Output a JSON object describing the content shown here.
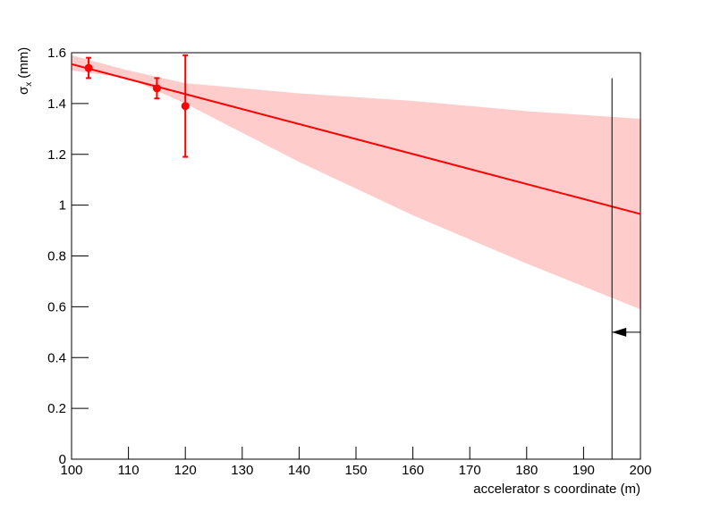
{
  "chart_data": {
    "type": "scatter",
    "x_label": "accelerator s coordinate (m)",
    "y_label": {
      "symbol": "σ",
      "subscript": "x",
      "unit": "(mm)"
    },
    "xlim": [
      100,
      200
    ],
    "xticks": [
      100,
      110,
      120,
      130,
      140,
      150,
      160,
      170,
      180,
      190,
      200
    ],
    "ylim": [
      0,
      1.6
    ],
    "yticks": [
      0,
      0.2,
      0.4,
      0.6,
      0.8,
      1,
      1.2,
      1.4,
      1.6
    ],
    "grid": false,
    "series": [
      {
        "color": "#ff0000",
        "x": [
          103,
          115,
          120
        ],
        "values": [
          1.54,
          1.46,
          1.39
        ],
        "errors": [
          0.04,
          0.04,
          0.2
        ]
      }
    ],
    "fit": {
      "color": "#ff0000",
      "x": [
        100,
        200
      ],
      "values": [
        1.555,
        0.965
      ]
    },
    "band": {
      "color": "#ffcccc",
      "x": [
        100,
        110,
        120,
        140,
        160,
        180,
        200
      ],
      "upper": [
        1.59,
        1.53,
        1.48,
        1.44,
        1.41,
        1.37,
        1.34
      ],
      "lower": [
        1.53,
        1.5,
        1.4,
        1.17,
        0.96,
        0.77,
        0.59
      ]
    },
    "marker_line": {
      "color": "#000000",
      "x": 195,
      "y": [
        0,
        1.5
      ]
    },
    "arrow": {
      "color": "#000000",
      "y": 0.5,
      "x": [
        200,
        195
      ]
    }
  }
}
